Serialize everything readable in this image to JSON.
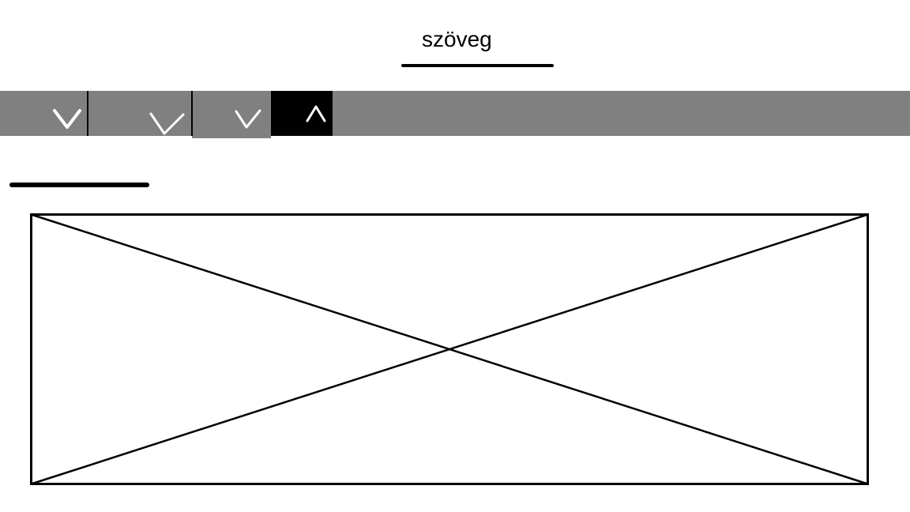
{
  "header": {
    "title": "szöveg"
  },
  "navbar": {
    "items": [
      {
        "name": "nav-item-1",
        "icon": "chevron-down-icon",
        "state": "collapsed"
      },
      {
        "name": "nav-item-2",
        "icon": "chevron-down-icon",
        "state": "collapsed"
      },
      {
        "name": "nav-item-3",
        "icon": "chevron-down-icon",
        "state": "collapsed"
      },
      {
        "name": "nav-item-4",
        "icon": "chevron-up-icon",
        "state": "expanded"
      }
    ]
  },
  "image_placeholder": {
    "icon": "image-placeholder-icon"
  },
  "colors": {
    "navbar_background": "#808080",
    "active_item_background": "#000000",
    "chevron": "#ffffff",
    "text": "#000000",
    "line": "#000000",
    "page_background": "#ffffff"
  }
}
